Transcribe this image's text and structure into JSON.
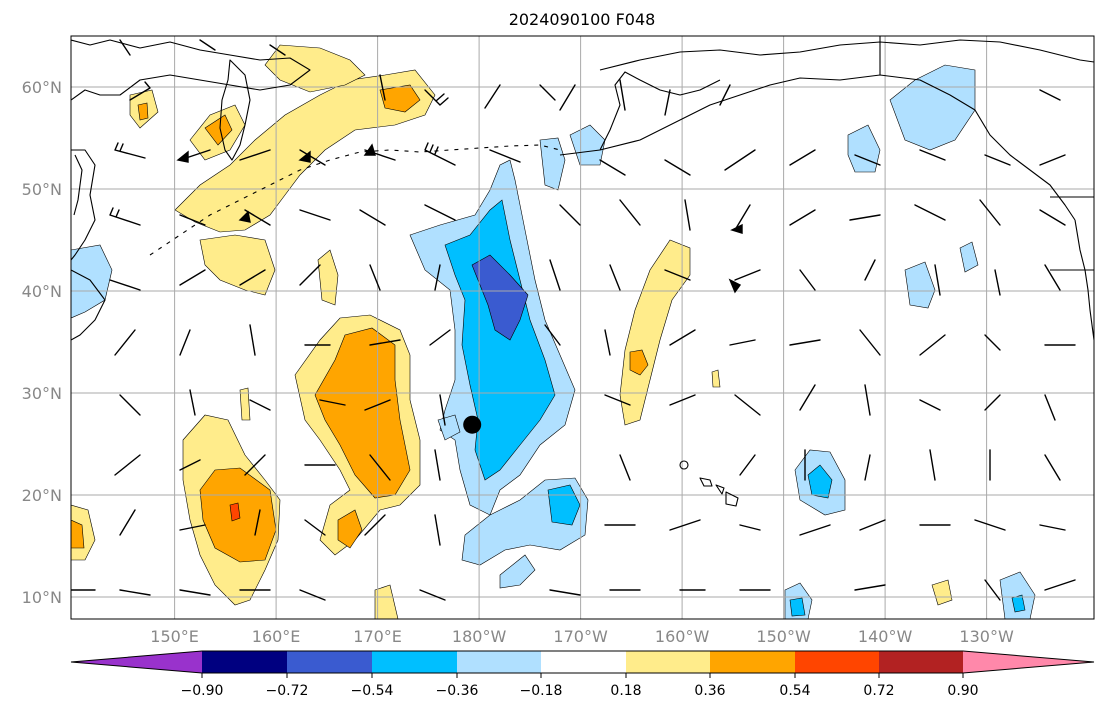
{
  "title": "2024090100 F048",
  "map": {
    "lat_labels": [
      "60°N",
      "50°N",
      "40°N",
      "30°N",
      "20°N",
      "10°N"
    ],
    "lon_labels": [
      "150°E",
      "160°E",
      "170°E",
      "180°W",
      "170°W",
      "160°W",
      "150°W",
      "140°W",
      "130°W"
    ],
    "lon_range_deg_east": [
      140,
      242
    ],
    "lat_range": [
      8,
      65
    ],
    "marker": {
      "lon": 180,
      "lat": 27,
      "color": "#000000"
    },
    "colorbar": {
      "ticks": [
        "−0.90",
        "−0.72",
        "−0.54",
        "−0.36",
        "−0.18",
        "0.18",
        "0.36",
        "0.54",
        "0.72",
        "0.90"
      ],
      "colors": [
        "#9932cc",
        "#000080",
        "#3a5bd0",
        "#00bfff",
        "#b0e0ff",
        "#ffffff",
        "#ffec8b",
        "#ffa500",
        "#ff4500",
        "#b22222",
        "#ff88aa"
      ]
    },
    "colors": {
      "coast": "#000000",
      "grid": "#aaaaaa",
      "tick_label": "#888888"
    }
  }
}
